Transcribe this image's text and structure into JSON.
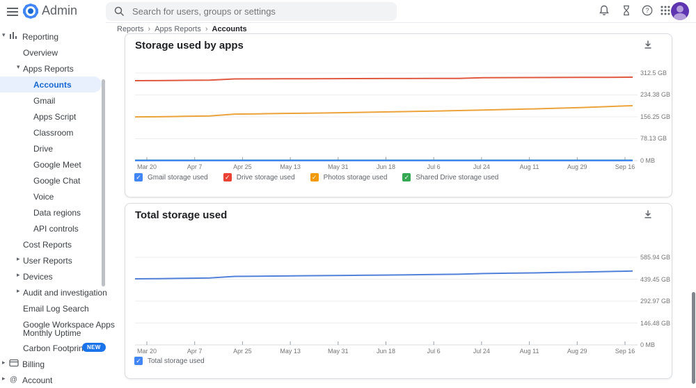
{
  "topbar": {
    "product_name": "Admin",
    "search_placeholder": "Search for users, groups or settings"
  },
  "breadcrumb": {
    "items": [
      "Reports",
      "Apps Reports",
      "Accounts"
    ]
  },
  "sidebar": {
    "selected_item": "Accounts",
    "new_badge_label": "NEW",
    "colors": {
      "selected_text": "#1967d2",
      "selected_bg": "#e8f0fe",
      "badge_bg": "#1a73e8"
    },
    "items": [
      {
        "id": "reporting",
        "label": "Reporting",
        "level": 0,
        "caret": "down",
        "icon": "chart"
      },
      {
        "id": "overview",
        "label": "Overview",
        "level": 1
      },
      {
        "id": "apps-reports",
        "label": "Apps Reports",
        "level": 1,
        "caret": "down"
      },
      {
        "id": "accounts",
        "label": "Accounts",
        "level": 2,
        "selected": true
      },
      {
        "id": "gmail",
        "label": "Gmail",
        "level": 2
      },
      {
        "id": "apps-script",
        "label": "Apps Script",
        "level": 2
      },
      {
        "id": "classroom",
        "label": "Classroom",
        "level": 2
      },
      {
        "id": "drive",
        "label": "Drive",
        "level": 2
      },
      {
        "id": "google-meet",
        "label": "Google Meet",
        "level": 2
      },
      {
        "id": "google-chat",
        "label": "Google Chat",
        "level": 2
      },
      {
        "id": "voice",
        "label": "Voice",
        "level": 2
      },
      {
        "id": "data-regions",
        "label": "Data regions",
        "level": 2
      },
      {
        "id": "api-controls",
        "label": "API controls",
        "level": 2
      },
      {
        "id": "cost-reports",
        "label": "Cost Reports",
        "level": 1
      },
      {
        "id": "user-reports",
        "label": "User Reports",
        "level": 1,
        "caret": "right"
      },
      {
        "id": "devices",
        "label": "Devices",
        "level": 1,
        "caret": "right"
      },
      {
        "id": "audit-and-investigation",
        "label": "Audit and investigation",
        "level": 1,
        "caret": "right"
      },
      {
        "id": "email-log-search",
        "label": "Email Log Search",
        "level": 1
      },
      {
        "id": "google-workspace-apps-monthly-uptime",
        "label": "Google Workspace Apps",
        "label2": "Monthly Uptime",
        "level": 1
      },
      {
        "id": "carbon-footprint",
        "label": "Carbon Footprint",
        "level": 1,
        "badge": "NEW"
      },
      {
        "id": "billing",
        "label": "Billing",
        "level": 0,
        "caret": "right",
        "icon": "card"
      },
      {
        "id": "account",
        "label": "Account",
        "level": 0,
        "caret": "right",
        "icon": "at"
      }
    ]
  },
  "chart_data": [
    {
      "type": "line",
      "title": "Storage used by apps",
      "legend_position": "bottom",
      "grid": true,
      "x_labels": [
        "Mar 20",
        "Apr 7",
        "Apr 25",
        "May 13",
        "May 31",
        "Jun 18",
        "Jul 6",
        "Jul 24",
        "Aug 11",
        "Aug 29",
        "Sep 16"
      ],
      "y_ticks": [
        {
          "label": "312.5 GB",
          "value": 312.5
        },
        {
          "label": "234.38 GB",
          "value": 234.38
        },
        {
          "label": "156.25 GB",
          "value": 156.25
        },
        {
          "label": "78.13 GB",
          "value": 78.13
        },
        {
          "label": "0 MB",
          "value": 0
        }
      ],
      "ylim": [
        0,
        312.5
      ],
      "unit": "GB",
      "series": [
        {
          "name": "Shared Drive storage used",
          "legend_color": "#34a853",
          "color": "#34a853",
          "width": 2.4,
          "values": [
            0.9,
            0.9,
            0.9,
            0.9,
            0.9,
            0.9,
            0.9,
            0.9,
            0.9,
            0.9,
            0.9,
            0.9,
            0.9,
            0.9,
            0.9,
            0.9,
            0.9,
            0.9,
            0.9,
            0.9,
            0.9
          ]
        },
        {
          "name": "Gmail storage used",
          "legend_color": "#4285f4",
          "color": "#4285f4",
          "width": 2.4,
          "values": [
            0.4,
            0.4,
            0.4,
            0.4,
            0.4,
            0.4,
            0.4,
            0.4,
            0.4,
            0.4,
            0.4,
            0.4,
            0.4,
            0.4,
            0.4,
            0.4,
            0.4,
            0.4,
            0.4,
            0.4,
            0.4
          ]
        },
        {
          "name": "Drive storage used",
          "legend_color": "#ea4335",
          "color": "#e0593f",
          "width": 2,
          "values": [
            285.2,
            285.4,
            286.5,
            287.0,
            291.5,
            291.7,
            292.0,
            292.2,
            292.4,
            292.6,
            292.8,
            293.0,
            293.2,
            293.5,
            296.0,
            296.2,
            296.5,
            296.7,
            297.0,
            297.2,
            297.5
          ]
        },
        {
          "name": "Photos storage used",
          "legend_color": "#f29900",
          "color": "#eca33b",
          "width": 2,
          "values": [
            156.0,
            156.5,
            158.0,
            159.5,
            166.0,
            167.0,
            168.5,
            169.5,
            170.5,
            172.0,
            173.5,
            175.0,
            176.5,
            178.5,
            180.5,
            182.5,
            184.5,
            187.0,
            189.5,
            193.0,
            196.0
          ]
        }
      ],
      "legend_order": [
        "Gmail storage used",
        "Drive storage used",
        "Photos storage used",
        "Shared Drive storage used"
      ]
    },
    {
      "type": "line",
      "title": "Total storage used",
      "legend_position": "bottom",
      "grid": true,
      "x_labels": [
        "Mar 20",
        "Apr 7",
        "Apr 25",
        "May 13",
        "May 31",
        "Jun 18",
        "Jul 6",
        "Jul 24",
        "Aug 11",
        "Aug 29",
        "Sep 16"
      ],
      "y_ticks": [
        {
          "label": "585.94 GB",
          "value": 585.94
        },
        {
          "label": "439.45 GB",
          "value": 439.45
        },
        {
          "label": "292.97 GB",
          "value": 292.97
        },
        {
          "label": "146.48 GB",
          "value": 146.48
        },
        {
          "label": "0 MB",
          "value": 0
        }
      ],
      "ylim": [
        0,
        585.94
      ],
      "unit": "GB",
      "series": [
        {
          "name": "Total storage used",
          "legend_color": "#4285f4",
          "color": "#5181d8",
          "width": 2,
          "values": [
            442,
            443,
            445,
            447.5,
            458,
            459.5,
            461,
            462.5,
            463.5,
            465.5,
            467,
            468.5,
            470.5,
            472.5,
            477,
            479.5,
            481.5,
            484.5,
            487,
            490.5,
            494
          ]
        }
      ],
      "legend_order": [
        "Total storage used"
      ]
    }
  ]
}
